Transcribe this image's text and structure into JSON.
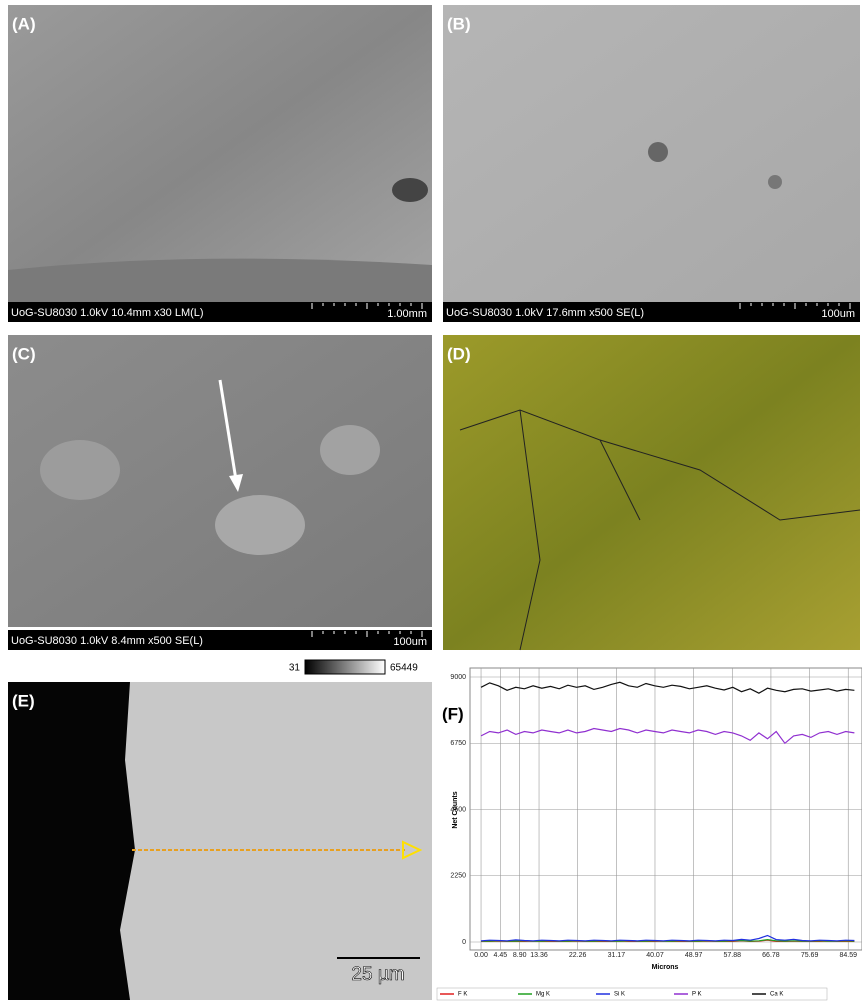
{
  "panels": [
    {
      "label": "(A)",
      "caption": "UoG-SU8030 1.0kV 10.4mm x30 LM(L)",
      "scale": "1.00mm"
    },
    {
      "label": "(B)",
      "caption": "UoG-SU8030 1.0kV 17.6mm x500 SE(L)",
      "scale": "100um"
    },
    {
      "label": "(C)",
      "caption": "UoG-SU8030 1.0kV 8.4mm x500 SE(L)",
      "scale": "100um"
    },
    {
      "label": "(D)"
    },
    {
      "label": "(E)",
      "scale": "25 µm",
      "colorbar": {
        "min": 31,
        "max": 65449
      }
    }
  ],
  "chart_data": {
    "type": "line",
    "label": "(F)",
    "ylabel": "Net Counts",
    "xlabel": "Microns",
    "xlim": [
      -0.7,
      87.3
    ],
    "ylim": [
      0,
      9000
    ],
    "yticks": [
      0,
      2250,
      4500,
      6750,
      9000
    ],
    "xticks": [
      {
        "value": 0,
        "label": "0.00"
      },
      4.45,
      {
        "value": 8.9,
        "label": "8.90"
      },
      13.36,
      22.26,
      31.17,
      40.07,
      48.97,
      57.88,
      66.78,
      75.69,
      84.59
    ],
    "grid": true,
    "x": [
      0,
      2,
      4,
      6,
      8,
      10,
      12,
      14,
      16,
      18,
      20,
      22,
      24,
      26,
      28,
      30,
      32,
      34,
      36,
      38,
      40,
      42,
      44,
      46,
      48,
      50,
      52,
      54,
      56,
      58,
      60,
      62,
      64,
      66,
      68,
      70,
      72,
      74,
      76,
      78,
      80,
      82,
      84,
      86
    ],
    "series": [
      {
        "name": "F K",
        "color": "#e02020",
        "values": [
          20,
          20,
          30,
          20,
          20,
          20,
          30,
          20,
          20,
          20,
          20,
          30,
          20,
          20,
          20,
          20,
          30,
          20,
          20,
          20,
          20,
          30,
          20,
          20,
          20,
          20,
          30,
          20,
          20,
          20,
          40,
          20,
          30,
          60,
          20,
          20,
          30,
          20,
          20,
          20,
          30,
          20,
          20,
          20
        ]
      },
      {
        "name": "Mg K",
        "color": "#20a020",
        "values": [
          30,
          30,
          40,
          30,
          30,
          40,
          30,
          30,
          40,
          30,
          30,
          40,
          30,
          30,
          40,
          30,
          30,
          40,
          30,
          30,
          40,
          30,
          30,
          40,
          30,
          30,
          40,
          30,
          30,
          40,
          50,
          30,
          40,
          80,
          40,
          30,
          40,
          30,
          30,
          40,
          30,
          30,
          40,
          30
        ]
      },
      {
        "name": "Si K",
        "color": "#2030e0",
        "values": [
          40,
          60,
          50,
          40,
          70,
          50,
          40,
          60,
          50,
          40,
          60,
          50,
          40,
          60,
          50,
          40,
          60,
          50,
          40,
          60,
          50,
          40,
          60,
          50,
          40,
          60,
          50,
          40,
          60,
          50,
          90,
          60,
          120,
          220,
          80,
          60,
          90,
          50,
          40,
          60,
          50,
          40,
          60,
          50
        ]
      },
      {
        "name": "P K",
        "color": "#9030d0",
        "values": [
          7000,
          7150,
          7100,
          7200,
          7050,
          7150,
          7100,
          7200,
          7150,
          7100,
          7200,
          7100,
          7150,
          7250,
          7200,
          7150,
          7250,
          7200,
          7100,
          7200,
          7150,
          7100,
          7200,
          7150,
          7100,
          7200,
          7150,
          7050,
          7150,
          7100,
          7000,
          6850,
          7100,
          6900,
          7150,
          6750,
          7000,
          7050,
          6950,
          7100,
          7150,
          7050,
          7150,
          7100
        ]
      },
      {
        "name": "Ca K",
        "color": "#111111",
        "values": [
          8650,
          8800,
          8700,
          8550,
          8650,
          8600,
          8700,
          8620,
          8680,
          8600,
          8720,
          8650,
          8700,
          8580,
          8650,
          8750,
          8820,
          8700,
          8650,
          8780,
          8700,
          8650,
          8720,
          8680,
          8600,
          8650,
          8700,
          8620,
          8560,
          8650,
          8500,
          8600,
          8450,
          8620,
          8550,
          8500,
          8580,
          8600,
          8520,
          8560,
          8600,
          8520,
          8580,
          8550
        ]
      }
    ]
  }
}
